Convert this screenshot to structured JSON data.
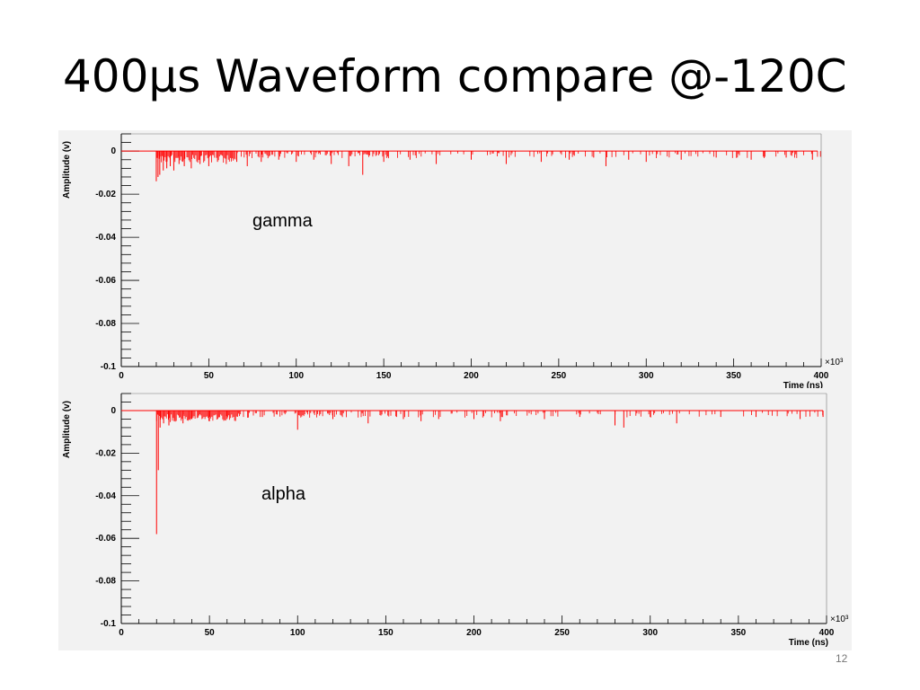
{
  "slide": {
    "title": "400μs Waveform compare @-120C",
    "page_number": "12"
  },
  "colors": {
    "trace": "#ff0000",
    "axis": "#000000",
    "panel_bg": "#f2f2f2"
  },
  "chart_data": [
    {
      "type": "line",
      "label": "gamma",
      "xlabel": "Time (ns)",
      "ylabel": "Amplitude (v)",
      "x_multiplier": "×10³",
      "xlim": [
        0,
        400
      ],
      "ylim": [
        -0.1,
        0.008
      ],
      "x_ticks": [
        "0",
        "50",
        "100",
        "150",
        "200",
        "250",
        "300",
        "350",
        "400"
      ],
      "y_ticks": [
        "0",
        "-0.02",
        "-0.04",
        "-0.06",
        "-0.08",
        "-0.1"
      ],
      "baseline": 0,
      "series": [
        {
          "x": [
            20,
            21,
            22,
            24,
            26,
            28,
            30,
            33,
            36,
            40,
            45,
            50,
            55,
            60,
            66,
            72,
            80,
            90,
            100,
            110,
            120,
            130,
            138,
            150,
            165,
            180,
            200,
            220,
            240,
            256,
            270,
            277,
            290,
            300,
            320,
            340,
            360,
            380,
            395
          ],
          "y": [
            -0.014,
            -0.012,
            -0.011,
            -0.009,
            -0.008,
            -0.007,
            -0.009,
            -0.006,
            -0.007,
            -0.008,
            -0.006,
            -0.007,
            -0.005,
            -0.006,
            -0.005,
            -0.007,
            -0.005,
            -0.004,
            -0.005,
            -0.004,
            -0.006,
            -0.007,
            -0.011,
            -0.005,
            -0.004,
            -0.006,
            -0.004,
            -0.006,
            -0.005,
            -0.004,
            -0.003,
            -0.007,
            -0.004,
            -0.005,
            -0.004,
            -0.003,
            -0.004,
            -0.003,
            -0.004
          ]
        }
      ]
    },
    {
      "type": "line",
      "label": "alpha",
      "xlabel": "Time (ns)",
      "ylabel": "Amplitude (v)",
      "x_multiplier": "×10³",
      "xlim": [
        0,
        400
      ],
      "ylim": [
        -0.1,
        0.008
      ],
      "x_ticks": [
        "0",
        "50",
        "100",
        "150",
        "200",
        "250",
        "300",
        "350",
        "400"
      ],
      "y_ticks": [
        "0",
        "-0.02",
        "-0.04",
        "-0.06",
        "-0.08",
        "-0.1"
      ],
      "baseline": 0,
      "series": [
        {
          "x": [
            20,
            21,
            22,
            24,
            27,
            30,
            35,
            40,
            50,
            60,
            80,
            100,
            120,
            140,
            160,
            170,
            180,
            200,
            215,
            240,
            260,
            280,
            285,
            300,
            315,
            340,
            360,
            385,
            398
          ],
          "y": [
            -0.058,
            -0.028,
            -0.008,
            -0.006,
            -0.007,
            -0.005,
            -0.006,
            -0.004,
            -0.005,
            -0.004,
            -0.003,
            -0.009,
            -0.004,
            -0.006,
            -0.004,
            -0.005,
            -0.004,
            -0.004,
            -0.005,
            -0.004,
            -0.003,
            -0.007,
            -0.008,
            -0.003,
            -0.006,
            -0.003,
            -0.003,
            -0.004,
            -0.003
          ]
        }
      ]
    }
  ]
}
